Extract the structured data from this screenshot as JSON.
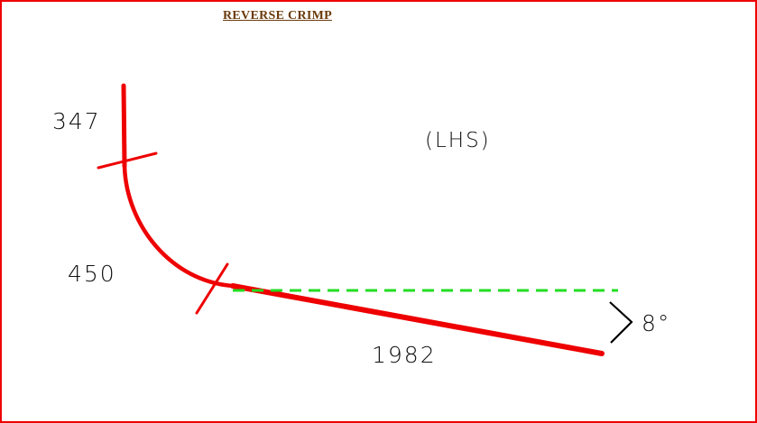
{
  "title": "REVERSE CRIMP",
  "side_label": "(LHS)",
  "dimensions": {
    "top_straight": "347",
    "bend": "450",
    "bottom_straight": "1982"
  },
  "angle_label": "8°",
  "colors": {
    "border": "#ee0000",
    "title": "#6b3a0a",
    "profile_line": "#ee0000",
    "reference_line": "#22dd22",
    "angle_mark": "#000000",
    "text": "#111111"
  }
}
